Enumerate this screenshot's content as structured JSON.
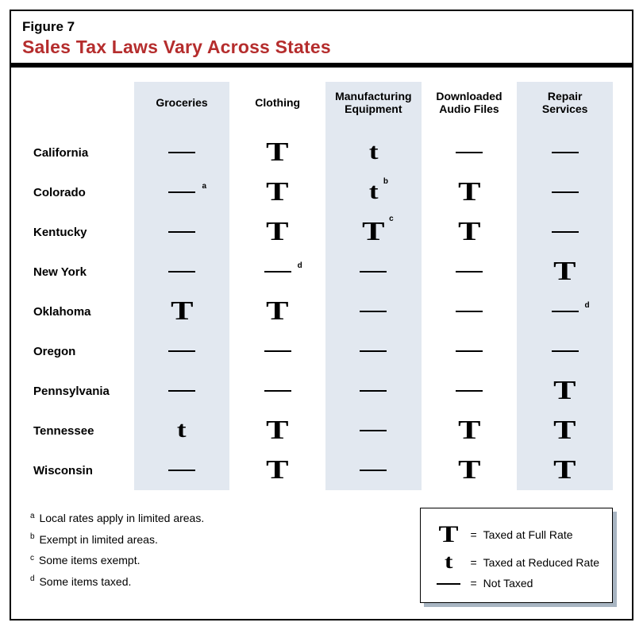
{
  "figure_number": "Figure 7",
  "figure_title": "Sales Tax Laws Vary Across States",
  "title_color": "#b52d2d",
  "shaded_bg": "#e2e8f0",
  "columns": [
    "Groceries",
    "Clothing",
    "Manufacturing Equipment",
    "Downloaded Audio Files",
    "Repair Services"
  ],
  "shaded_cols": [
    true,
    false,
    true,
    false,
    true
  ],
  "rows": [
    {
      "state": "California",
      "cells": [
        {
          "v": "dash"
        },
        {
          "v": "T"
        },
        {
          "v": "t"
        },
        {
          "v": "dash"
        },
        {
          "v": "dash"
        }
      ]
    },
    {
      "state": "Colorado",
      "cells": [
        {
          "v": "dash",
          "sup": "a"
        },
        {
          "v": "T"
        },
        {
          "v": "t",
          "sup": "b"
        },
        {
          "v": "T"
        },
        {
          "v": "dash"
        }
      ]
    },
    {
      "state": "Kentucky",
      "cells": [
        {
          "v": "dash"
        },
        {
          "v": "T"
        },
        {
          "v": "T",
          "sup": "c"
        },
        {
          "v": "T"
        },
        {
          "v": "dash"
        }
      ]
    },
    {
      "state": "New York",
      "cells": [
        {
          "v": "dash"
        },
        {
          "v": "dash",
          "sup": "d"
        },
        {
          "v": "dash"
        },
        {
          "v": "dash"
        },
        {
          "v": "T"
        }
      ]
    },
    {
      "state": "Oklahoma",
      "cells": [
        {
          "v": "T"
        },
        {
          "v": "T"
        },
        {
          "v": "dash"
        },
        {
          "v": "dash"
        },
        {
          "v": "dash",
          "sup": "d"
        }
      ]
    },
    {
      "state": "Oregon",
      "cells": [
        {
          "v": "dash"
        },
        {
          "v": "dash"
        },
        {
          "v": "dash"
        },
        {
          "v": "dash"
        },
        {
          "v": "dash"
        }
      ]
    },
    {
      "state": "Pennsylvania",
      "cells": [
        {
          "v": "dash"
        },
        {
          "v": "dash"
        },
        {
          "v": "dash"
        },
        {
          "v": "dash"
        },
        {
          "v": "T"
        }
      ]
    },
    {
      "state": "Tennessee",
      "cells": [
        {
          "v": "t"
        },
        {
          "v": "T"
        },
        {
          "v": "dash"
        },
        {
          "v": "T"
        },
        {
          "v": "T"
        }
      ]
    },
    {
      "state": "Wisconsin",
      "cells": [
        {
          "v": "dash"
        },
        {
          "v": "T"
        },
        {
          "v": "dash"
        },
        {
          "v": "T"
        },
        {
          "v": "T"
        }
      ]
    }
  ],
  "footnotes": [
    {
      "mark": "a",
      "text": "Local rates apply in limited areas."
    },
    {
      "mark": "b",
      "text": "Exempt in limited areas."
    },
    {
      "mark": "c",
      "text": "Some items exempt."
    },
    {
      "mark": "d",
      "text": "Some items taxed."
    }
  ],
  "legend": [
    {
      "sym": "T",
      "label": "Taxed at Full Rate"
    },
    {
      "sym": "t",
      "label": "Taxed at Reduced Rate"
    },
    {
      "sym": "dash",
      "label": "Not Taxed"
    }
  ],
  "legend_eq": "="
}
